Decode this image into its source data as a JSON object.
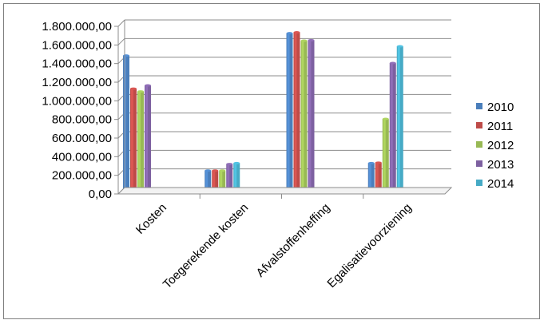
{
  "chart_data": {
    "type": "bar",
    "title": "",
    "xlabel": "",
    "ylabel": "",
    "ylim": [
      0,
      1800000
    ],
    "ytick_step": 200000,
    "yticks": [
      "0,00",
      "200.000,00",
      "400.000,00",
      "600.000,00",
      "800.000,00",
      "1.000.000,00",
      "1.200.000,00",
      "1.400.000,00",
      "1.600.000,00",
      "1.800.000,00"
    ],
    "categories": [
      "Kosten",
      "Toegerekende kosten",
      "Afvalstoffenheffing",
      "Egalisatievoorziening"
    ],
    "series": [
      {
        "name": "2010",
        "color": "#4a7ebb",
        "values": [
          1460000,
          225000,
          1700000,
          305000
        ]
      },
      {
        "name": "2011",
        "color": "#be4b48",
        "values": [
          1105000,
          225000,
          1710000,
          310000
        ]
      },
      {
        "name": "2012",
        "color": "#98b954",
        "values": [
          1075000,
          225000,
          1620000,
          780000
        ]
      },
      {
        "name": "2013",
        "color": "#7d60a0",
        "values": [
          1140000,
          295000,
          1625000,
          1380000
        ]
      },
      {
        "name": "2014",
        "color": "#46aac5",
        "values": [
          5000,
          305000,
          5000,
          1560000
        ]
      }
    ],
    "grid": true,
    "legend_position": "right"
  }
}
